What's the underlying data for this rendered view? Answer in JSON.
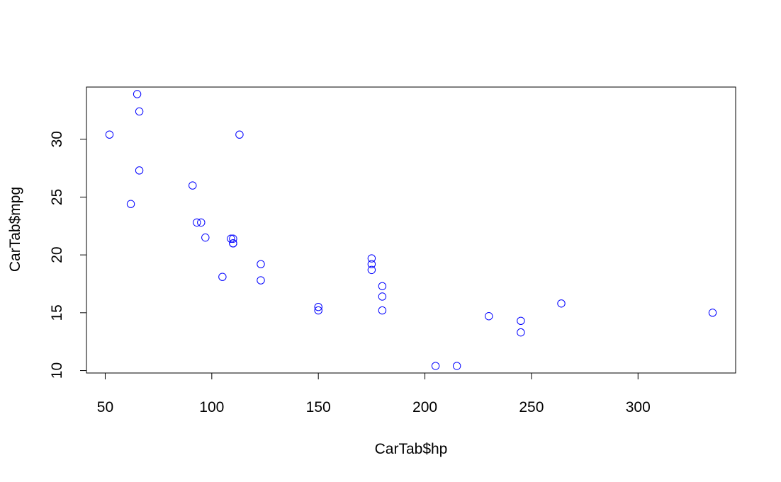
{
  "chart_data": {
    "type": "scatter",
    "title": "",
    "xlabel": "CarTab$hp",
    "ylabel": "CarTab$mpg",
    "xlim": [
      41.2,
      345.8
    ],
    "ylim": [
      9.79,
      34.51
    ],
    "x_ticks": [
      50,
      100,
      150,
      200,
      250,
      300
    ],
    "y_ticks": [
      10,
      15,
      20,
      25,
      30
    ],
    "grid": false,
    "marker": "open-circle",
    "point_color": "#0000ff",
    "points": [
      {
        "x": 110,
        "y": 21.0
      },
      {
        "x": 110,
        "y": 21.0
      },
      {
        "x": 93,
        "y": 22.8
      },
      {
        "x": 110,
        "y": 21.4
      },
      {
        "x": 175,
        "y": 18.7
      },
      {
        "x": 105,
        "y": 18.1
      },
      {
        "x": 245,
        "y": 14.3
      },
      {
        "x": 62,
        "y": 24.4
      },
      {
        "x": 95,
        "y": 22.8
      },
      {
        "x": 123,
        "y": 19.2
      },
      {
        "x": 123,
        "y": 17.8
      },
      {
        "x": 180,
        "y": 16.4
      },
      {
        "x": 180,
        "y": 17.3
      },
      {
        "x": 180,
        "y": 15.2
      },
      {
        "x": 205,
        "y": 10.4
      },
      {
        "x": 215,
        "y": 10.4
      },
      {
        "x": 230,
        "y": 14.7
      },
      {
        "x": 66,
        "y": 32.4
      },
      {
        "x": 52,
        "y": 30.4
      },
      {
        "x": 65,
        "y": 33.9
      },
      {
        "x": 97,
        "y": 21.5
      },
      {
        "x": 150,
        "y": 15.5
      },
      {
        "x": 150,
        "y": 15.2
      },
      {
        "x": 245,
        "y": 13.3
      },
      {
        "x": 175,
        "y": 19.2
      },
      {
        "x": 66,
        "y": 27.3
      },
      {
        "x": 91,
        "y": 26.0
      },
      {
        "x": 113,
        "y": 30.4
      },
      {
        "x": 264,
        "y": 15.8
      },
      {
        "x": 175,
        "y": 19.7
      },
      {
        "x": 335,
        "y": 15.0
      },
      {
        "x": 109,
        "y": 21.4
      }
    ]
  }
}
